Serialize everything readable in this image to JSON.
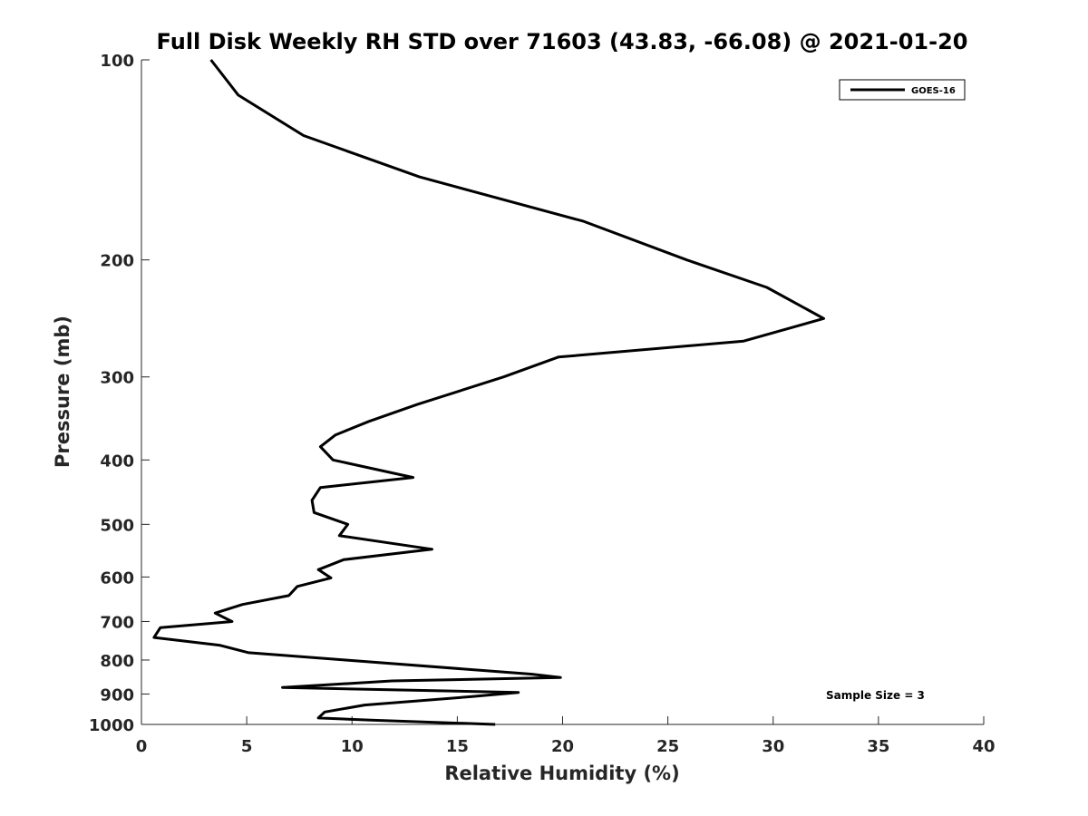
{
  "chart_data": {
    "type": "line",
    "title": "Full Disk Weekly RH STD over 71603 (43.83, -66.08) @ 2021-01-20",
    "xlabel": "Relative Humidity (%)",
    "ylabel": "Pressure (mb)",
    "xlim": [
      0,
      40
    ],
    "ylim": [
      100,
      1000
    ],
    "yscale": "log",
    "y_reversed": true,
    "grid": false,
    "legend_position": "top-right",
    "x_ticks": [
      "0",
      "5",
      "10",
      "15",
      "20",
      "25",
      "30",
      "35",
      "40"
    ],
    "x_tick_values": [
      0,
      5,
      10,
      15,
      20,
      25,
      30,
      35,
      40
    ],
    "y_ticks": [
      "100",
      "200",
      "300",
      "400",
      "500",
      "600",
      "700",
      "800",
      "900",
      "1000"
    ],
    "y_tick_values": [
      100,
      200,
      300,
      400,
      500,
      600,
      700,
      800,
      900,
      1000
    ],
    "series": [
      {
        "name": "GOES-16",
        "color": "#000000",
        "x": [
          3.3,
          4.6,
          7.7,
          13.2,
          21.0,
          25.9,
          29.7,
          32.4,
          28.6,
          19.8,
          17.2,
          13.1,
          10.8,
          9.2,
          8.5,
          9.1,
          12.9,
          8.5,
          8.1,
          8.2,
          9.8,
          9.4,
          13.8,
          9.6,
          8.4,
          9.0,
          7.4,
          7.0,
          4.8,
          3.5,
          4.3,
          0.9,
          0.6,
          3.7,
          5.1,
          9.7,
          18.5,
          19.9,
          11.9,
          6.7,
          17.9,
          15.7,
          10.6,
          8.7,
          8.4,
          10.9,
          16.8
        ],
        "y": [
          100,
          113,
          130,
          150,
          175,
          200,
          220,
          245,
          265,
          280,
          300,
          330,
          350,
          367,
          382,
          400,
          425,
          440,
          460,
          480,
          500,
          520,
          545,
          565,
          585,
          602,
          620,
          640,
          660,
          680,
          700,
          715,
          740,
          760,
          780,
          800,
          840,
          850,
          860,
          880,
          895,
          908,
          935,
          958,
          978,
          985,
          1000
        ]
      }
    ],
    "annotations": [
      "Sample Size = 3"
    ]
  }
}
